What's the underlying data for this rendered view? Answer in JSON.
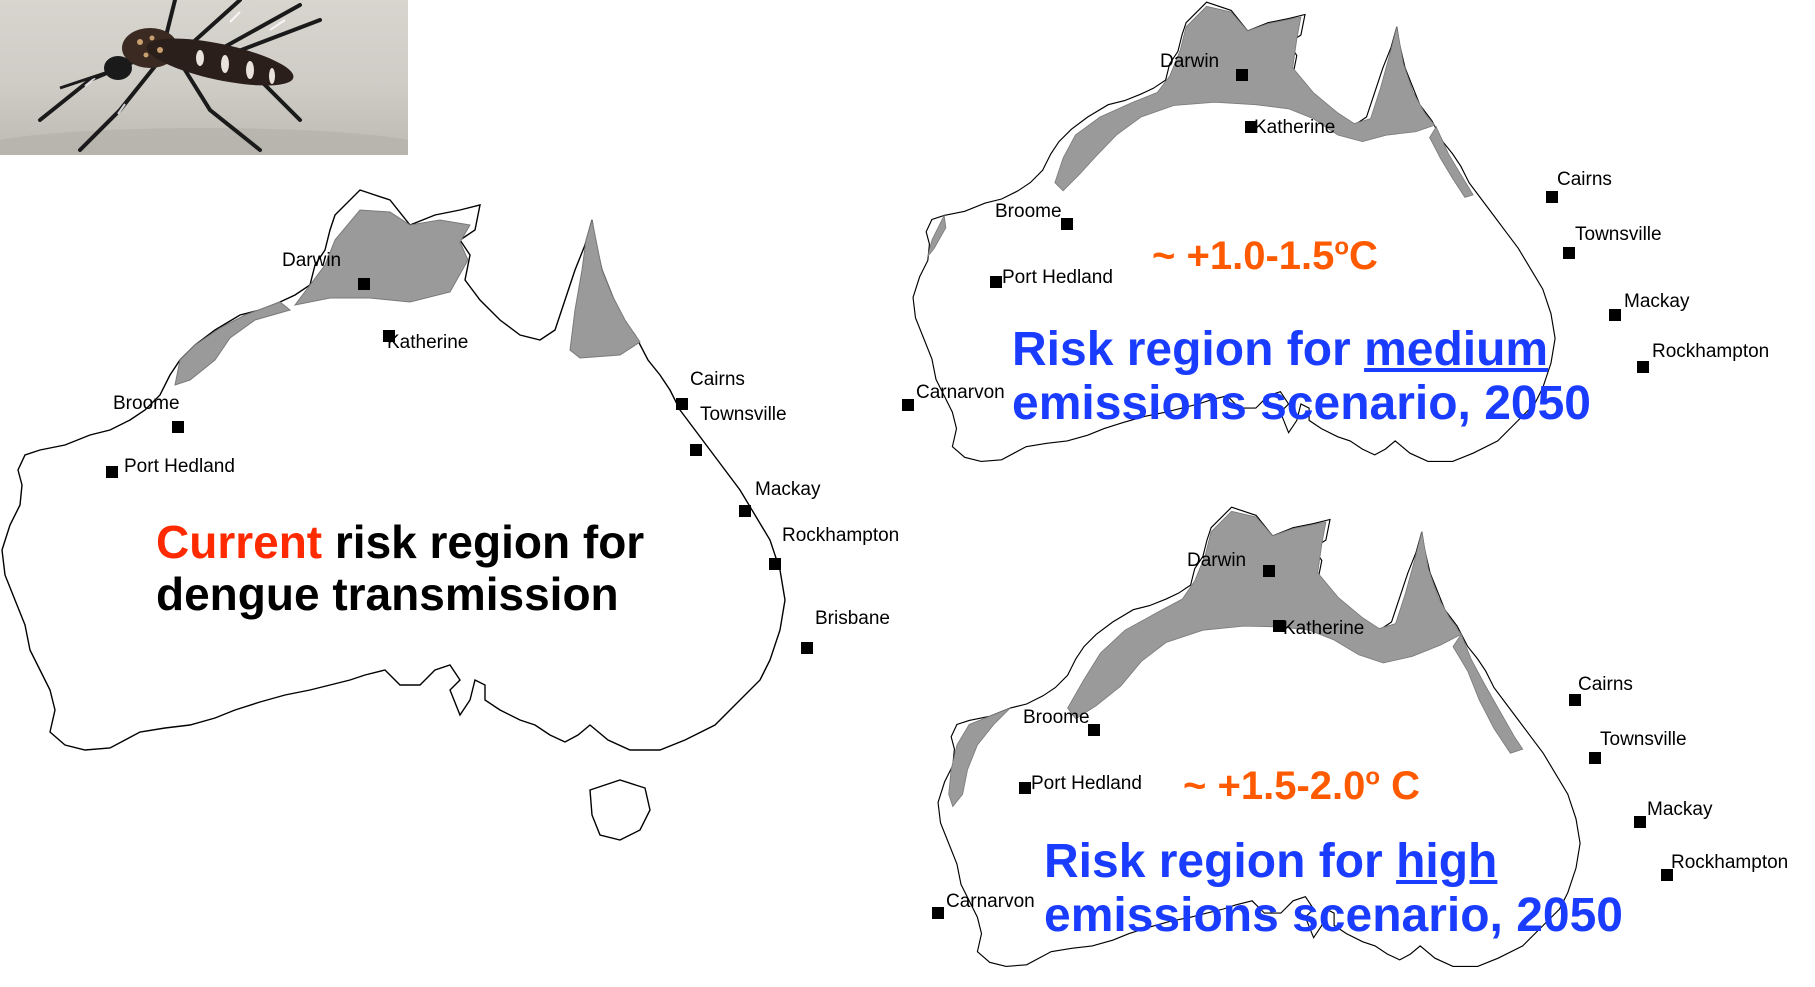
{
  "photo": {
    "icon": "mosquito-photo",
    "alt_desc": ""
  },
  "panels": {
    "current": {
      "caption_highlight": "Current",
      "caption_rest_line1": " risk region for",
      "caption_line2": "dengue transmission",
      "highlight_color": "#ff2a00",
      "text_color": "#000000",
      "cities": [
        "Darwin",
        "Katherine",
        "Broome",
        "Port Hedland",
        "Cairns",
        "Townsville",
        "Mackay",
        "Rockhampton",
        "Brisbane"
      ]
    },
    "medium": {
      "temp": "~ +1.0-1.5",
      "temp_sup": "o",
      "temp_unit": "C",
      "temp_color": "#ff5a00",
      "caption_line1_prefix": "Risk region for ",
      "caption_line1_underlined": "medium",
      "caption_line2": "emissions scenario, 2050",
      "caption_color": "#1a3cff",
      "cities": [
        "Darwin",
        "Katherine",
        "Broome",
        "Port Hedland",
        "Carnarvon",
        "Cairns",
        "Townsville",
        "Mackay",
        "Rockhampton"
      ]
    },
    "high": {
      "temp": "~ +1.5-2.0",
      "temp_sup": "o",
      "temp_unit": " C",
      "temp_color": "#ff5a00",
      "caption_line1_prefix": "Risk region for ",
      "caption_line1_underlined": "high",
      "caption_line2": "emissions scenario, 2050",
      "caption_color": "#1a3cff",
      "cities": [
        "Darwin",
        "Katherine",
        "Broome",
        "Port Hedland",
        "Carnarvon",
        "Cairns",
        "Townsville",
        "Mackay",
        "Rockhampton"
      ]
    }
  }
}
